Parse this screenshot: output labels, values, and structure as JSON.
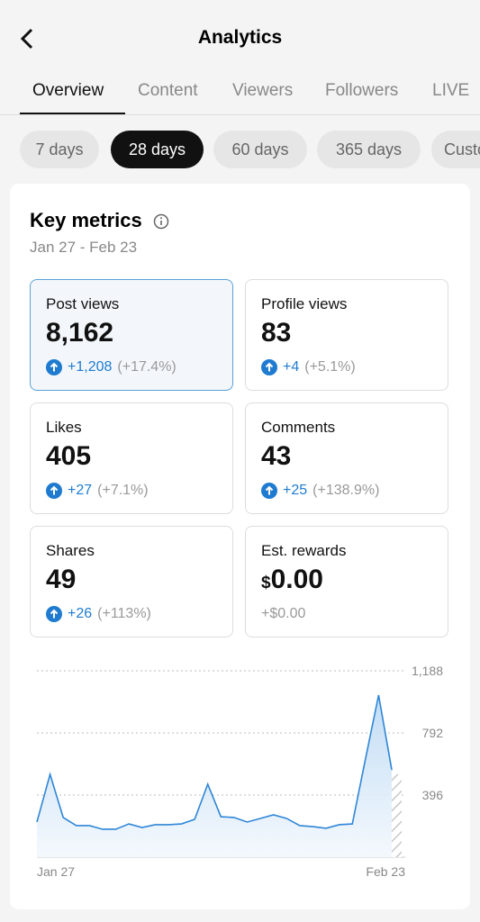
{
  "header": {
    "title": "Analytics"
  },
  "tabs": [
    "Overview",
    "Content",
    "Viewers",
    "Followers",
    "LIVE"
  ],
  "ranges": [
    "7 days",
    "28 days",
    "60 days",
    "365 days",
    "Custom"
  ],
  "key_metrics": {
    "title": "Key metrics",
    "date_range": "Jan 27 - Feb 23",
    "metrics": [
      {
        "label": "Post views",
        "value": "8,162",
        "change": "+1,208",
        "percent": "(+17.4%)"
      },
      {
        "label": "Profile views",
        "value": "83",
        "change": "+4",
        "percent": "(+5.1%)"
      },
      {
        "label": "Likes",
        "value": "405",
        "change": "+27",
        "percent": "(+7.1%)"
      },
      {
        "label": "Comments",
        "value": "43",
        "change": "+25",
        "percent": "(+138.9%)"
      },
      {
        "label": "Shares",
        "value": "49",
        "change": "+26",
        "percent": "(+113%)"
      },
      {
        "label": "Est. rewards",
        "currency": "$",
        "value": "0.00",
        "change": "+$0.00"
      }
    ]
  },
  "chart_data": {
    "type": "line",
    "x": [
      "Jan 27",
      null,
      null,
      null,
      null,
      null,
      null,
      null,
      null,
      null,
      null,
      null,
      null,
      null,
      null,
      null,
      null,
      null,
      null,
      null,
      null,
      null,
      null,
      null,
      null,
      null,
      null,
      "Feb 23"
    ],
    "series": [
      {
        "color": "#2f86d6",
        "values": [
          224,
          528,
          253,
          201,
          201,
          178,
          178,
          212,
          189,
          207,
          207,
          212,
          241,
          465,
          258,
          253,
          224,
          247,
          270,
          247,
          201,
          195,
          184,
          207,
          212,
          626,
          1033,
          557
        ]
      }
    ],
    "ylim": [
      0,
      1188
    ],
    "yticks": [
      396,
      792,
      {
        "value": 1188,
        "label": "1,188"
      }
    ],
    "grid": true
  }
}
